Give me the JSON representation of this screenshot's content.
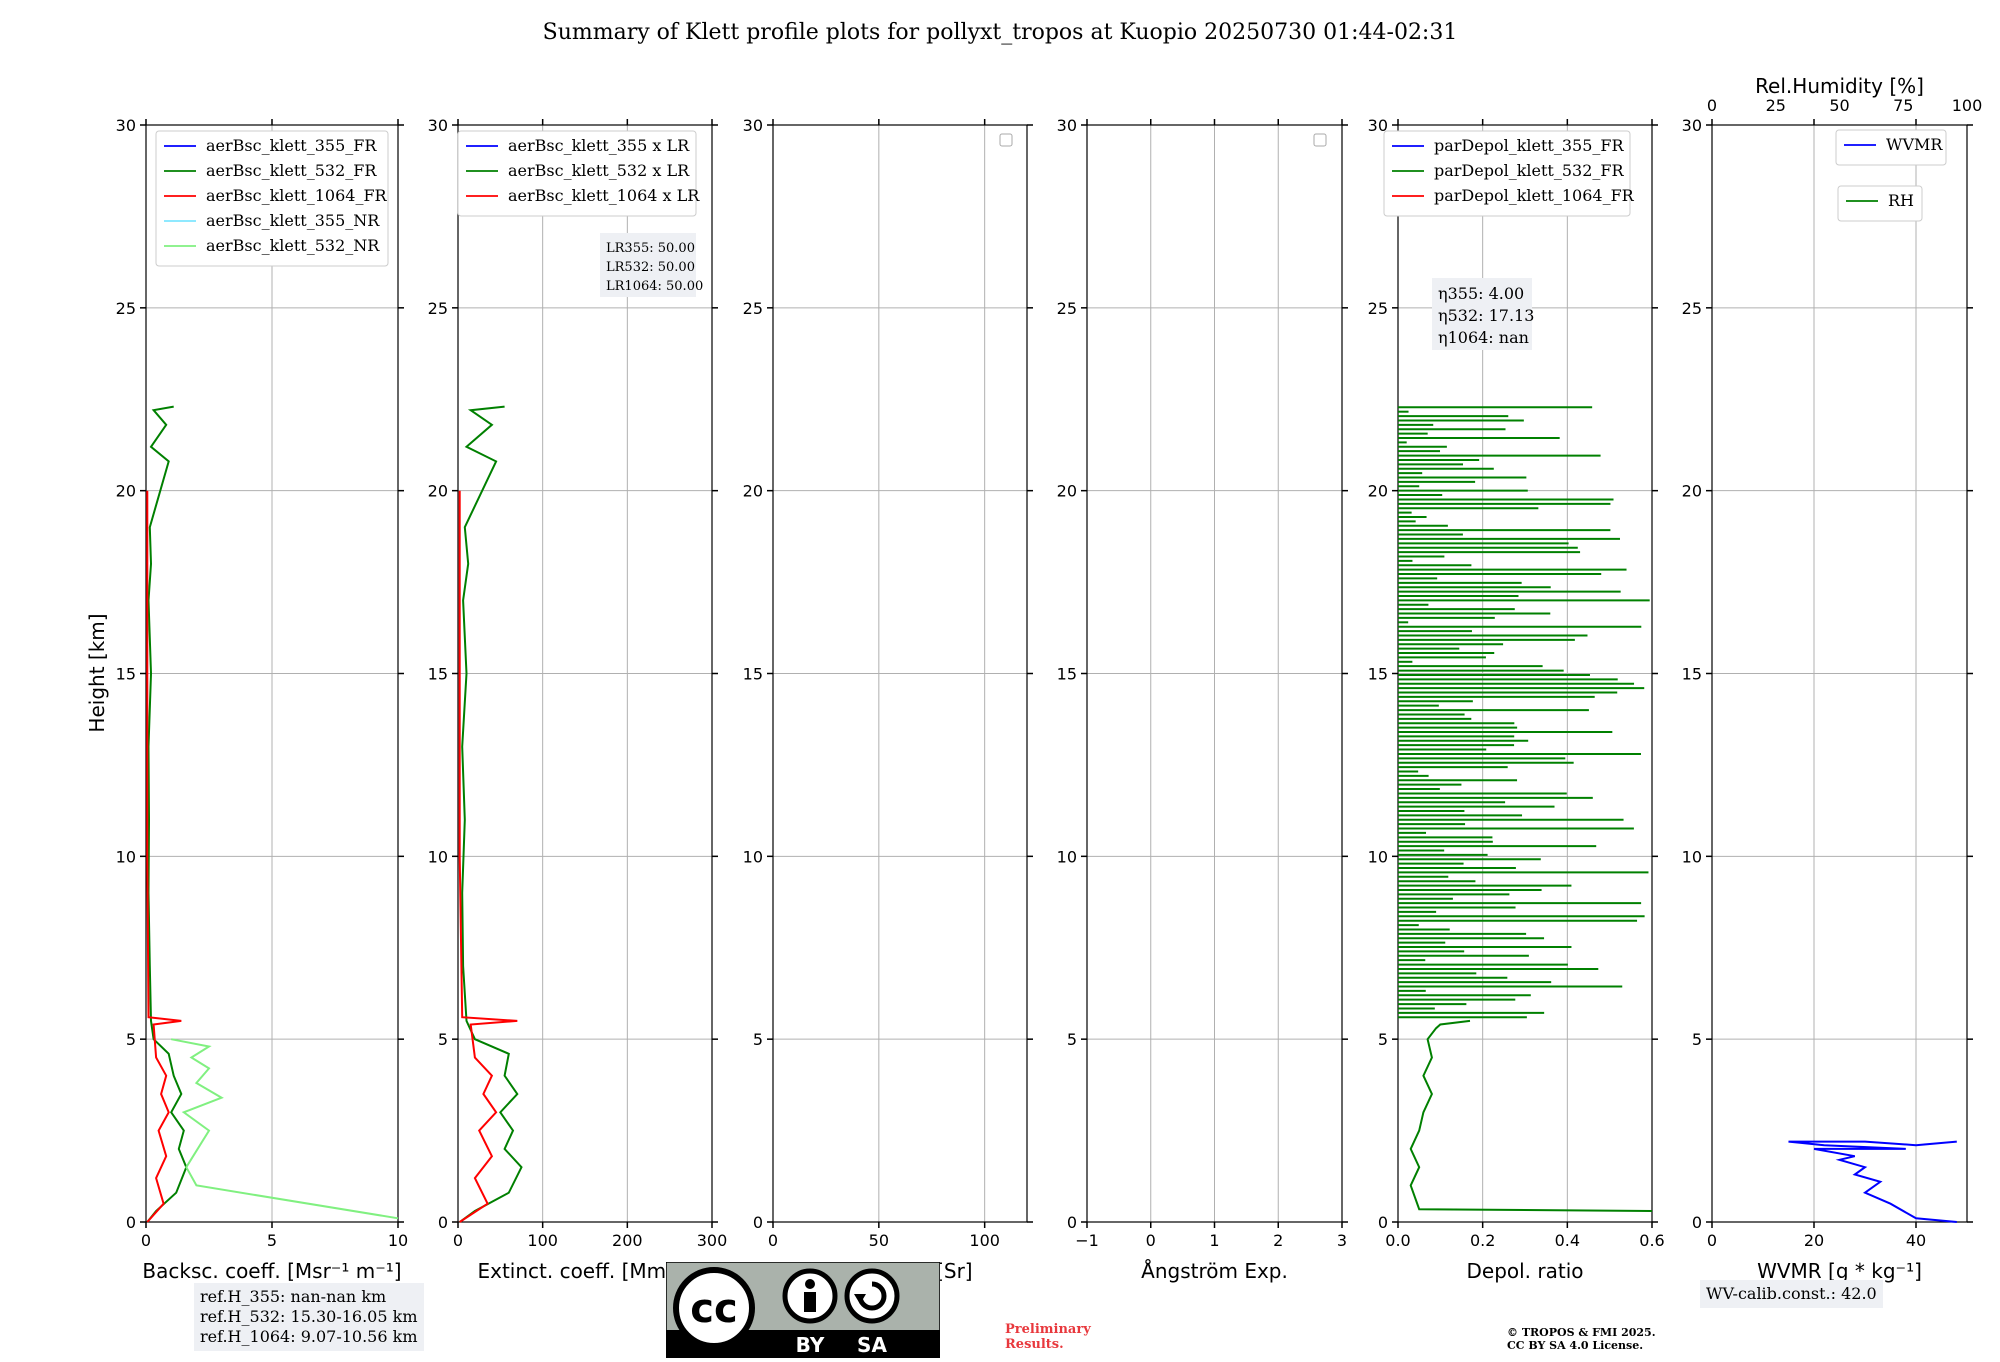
{
  "title": "Summary of Klett profile plots for pollyxt_tropos at Kuopio 20250730 01:44-02:31",
  "y_label": "Height [km]",
  "y_ticks": [
    "0",
    "5",
    "10",
    "15",
    "20",
    "25",
    "30"
  ],
  "panels": [
    {
      "id": "bsc",
      "xlabel": "Backsc. coeff. [Msr⁻¹ m⁻¹]",
      "xticks": [
        "0",
        "5",
        "10"
      ],
      "xlim": [
        0,
        10
      ]
    },
    {
      "id": "ext",
      "xlabel": "Extinct. coeff. [Mm⁻¹]",
      "xticks": [
        "0",
        "100",
        "200",
        "300"
      ],
      "xlim": [
        0,
        300
      ]
    },
    {
      "id": "lr",
      "xlabel": "Lidar ratio [Sr]",
      "xticks": [
        "0",
        "50",
        "100"
      ],
      "xlim": [
        0,
        120
      ]
    },
    {
      "id": "ae",
      "xlabel": "Ångström Exp.",
      "xticks": [
        "−1",
        "0",
        "1",
        "2",
        "3"
      ],
      "xlim": [
        -1,
        3
      ]
    },
    {
      "id": "depol",
      "xlabel": "Depol. ratio",
      "xticks": [
        "0.0",
        "0.2",
        "0.4",
        "0.6"
      ],
      "xlim": [
        0,
        0.6
      ]
    },
    {
      "id": "wv",
      "xlabel": "WVMR [g * kg⁻¹]",
      "xticks": [
        "0",
        "20",
        "40"
      ],
      "xlim": [
        0,
        50
      ],
      "top_label": "Rel.Humidity [%]",
      "top_ticks": [
        "0",
        "25",
        "50",
        "75",
        "100"
      ]
    }
  ],
  "legends": {
    "bsc": [
      "aerBsc_klett_355_FR",
      "aerBsc_klett_532_FR",
      "aerBsc_klett_1064_FR",
      "aerBsc_klett_355_NR",
      "aerBsc_klett_532_NR"
    ],
    "ext": [
      "aerBsc_klett_355 x LR",
      "aerBsc_klett_532 x LR",
      "aerBsc_klett_1064 x LR"
    ],
    "depol": [
      "parDepol_klett_355_FR",
      "parDepol_klett_532_FR",
      "parDepol_klett_1064_FR"
    ],
    "wv_wvmr": "WVMR",
    "wv_rh": "RH"
  },
  "colors": {
    "c355": "#0000ff",
    "c532": "#008000",
    "c1064": "#ff0000",
    "c355nr": "#7fe6ff",
    "c532nr": "#80f080"
  },
  "annotations": {
    "lr": [
      "LR355: 50.00",
      "LR532: 50.00",
      "LR1064: 50.00"
    ],
    "eta": [
      "η355: 4.00",
      "η532: 17.13",
      "η1064: nan"
    ],
    "ref": [
      "ref.H_355: nan-nan km",
      "ref.H_532: 15.30-16.05 km",
      "ref.H_1064: 9.07-10.56 km"
    ],
    "wv_calib": "WV-calib.const.: 42.0",
    "preliminary": [
      "Preliminary",
      "Results."
    ],
    "copyright": [
      "© TROPOS & FMI 2025.",
      "CC BY SA 4.0 License."
    ],
    "cc_by": "BY",
    "cc_sa": "SA",
    "cc": "cc"
  },
  "chart_data": {
    "type": "line",
    "ylim": [
      0,
      30
    ],
    "series": [
      {
        "name": "aerBsc_klett_532_FR",
        "panel": "bsc",
        "x": [
          0.05,
          0.4,
          1.2,
          1.6,
          1.3,
          1.5,
          1.0,
          1.4,
          1.1,
          0.9,
          0.3,
          0.2,
          0.15,
          0.1,
          0.12,
          0.1,
          0.2,
          0.1,
          0.2,
          0.15,
          0.9,
          0.2,
          0.8,
          0.3,
          1.1
        ],
        "y": [
          0,
          0.3,
          0.8,
          1.5,
          2.0,
          2.5,
          3.0,
          3.5,
          4.0,
          4.6,
          5.0,
          5.5,
          7,
          9,
          11,
          13,
          15,
          17,
          18,
          19,
          20.8,
          21.2,
          21.8,
          22.2,
          22.3
        ]
      },
      {
        "name": "aerBsc_klett_1064_FR",
        "panel": "bsc",
        "x": [
          0.05,
          0.7,
          0.4,
          0.8,
          0.5,
          0.9,
          0.6,
          0.8,
          0.4,
          0.3,
          1.4,
          0.1,
          0.05,
          0.05
        ],
        "y": [
          0,
          0.5,
          1.2,
          1.8,
          2.5,
          3.0,
          3.5,
          4.0,
          4.5,
          5.4,
          5.5,
          5.6,
          10,
          20
        ]
      },
      {
        "name": "aerBsc_klett_532_NR",
        "panel": "bsc",
        "x": [
          10,
          2,
          1.6,
          2.5,
          1.5,
          3.0,
          2.0,
          2.5,
          1.8,
          2.5,
          1.0
        ],
        "y": [
          0.1,
          1.0,
          1.5,
          2.5,
          3.0,
          3.4,
          3.8,
          4.2,
          4.5,
          4.8,
          5.0
        ]
      },
      {
        "name": "aerBsc_klett_532 x LR",
        "panel": "ext",
        "x": [
          2,
          20,
          60,
          75,
          55,
          65,
          50,
          70,
          55,
          60,
          20,
          10,
          6,
          5,
          8,
          5,
          10,
          6,
          12,
          8,
          45,
          10,
          40,
          15,
          55
        ],
        "y": [
          0,
          0.3,
          0.8,
          1.5,
          2.0,
          2.5,
          3.0,
          3.5,
          4.0,
          4.6,
          5.0,
          5.5,
          7,
          9,
          11,
          13,
          15,
          17,
          18,
          19,
          20.8,
          21.2,
          21.8,
          22.2,
          22.3
        ]
      },
      {
        "name": "aerBsc_klett_1064 x LR",
        "panel": "ext",
        "x": [
          2,
          35,
          20,
          40,
          25,
          45,
          30,
          40,
          20,
          15,
          70,
          5,
          2,
          2
        ],
        "y": [
          0,
          0.5,
          1.2,
          1.8,
          2.5,
          3.0,
          3.5,
          4.0,
          4.5,
          5.4,
          5.5,
          5.6,
          10,
          20
        ]
      },
      {
        "name": "parDepol_klett_532_FR",
        "panel": "depol",
        "x": [
          0.6,
          0.05,
          0.03,
          0.05,
          0.03,
          0.05,
          0.06,
          0.08,
          0.06,
          0.08,
          0.07,
          0.09,
          0.1,
          0.17
        ],
        "y": [
          0.3,
          0.35,
          1.0,
          1.5,
          2.0,
          2.5,
          3.0,
          3.5,
          4.0,
          4.5,
          5.0,
          5.3,
          5.4,
          5.5
        ]
      },
      {
        "name": "WVMR",
        "panel": "wv",
        "x": [
          48,
          40,
          35,
          30,
          33,
          28,
          30,
          25,
          28,
          20,
          38,
          22,
          15,
          30,
          40,
          48
        ],
        "y": [
          0,
          0.1,
          0.5,
          0.8,
          1.1,
          1.3,
          1.5,
          1.7,
          1.8,
          2.0,
          2.0,
          2.1,
          2.2,
          2.2,
          2.1,
          2.2
        ]
      }
    ]
  }
}
